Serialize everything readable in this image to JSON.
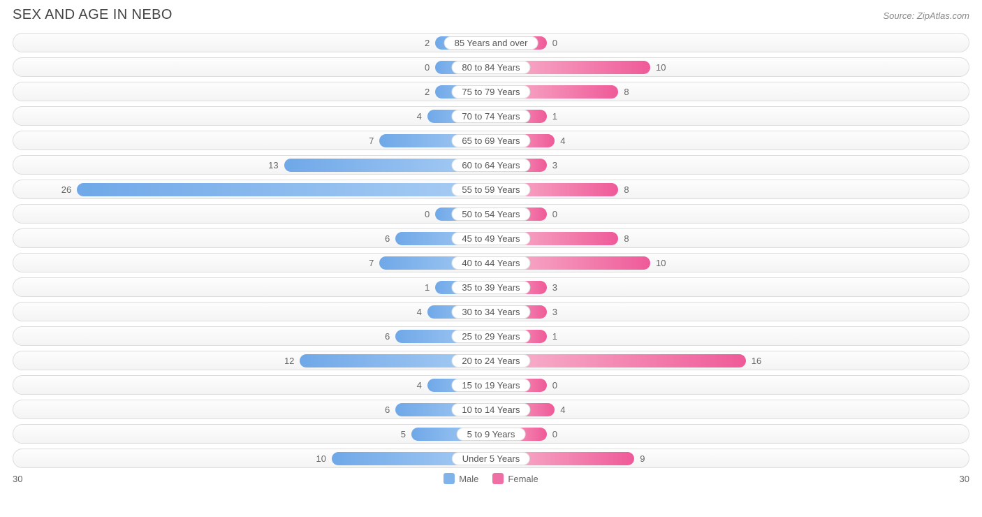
{
  "title": "SEX AND AGE IN NEBO",
  "source": "Source: ZipAtlas.com",
  "chart": {
    "type": "population-pyramid",
    "axis_max": 30,
    "axis_left_label": "30",
    "axis_right_label": "30",
    "min_bar_value_for_width": 3.5,
    "track_border": "#dddddd",
    "track_bg_top": "#fdfdfd",
    "track_bg_bottom": "#f4f4f4",
    "label_bg": "#ffffff",
    "label_border": "#dcdcdc",
    "text_color": "#666666",
    "male_gradient": {
      "left": "#6fa8e8",
      "right": "#a9cdf4"
    },
    "female_gradient": {
      "left": "#f8b8cf",
      "right": "#ef5a98"
    },
    "legend": {
      "male": {
        "label": "Male",
        "color": "#7fb3ea"
      },
      "female": {
        "label": "Female",
        "color": "#ef6fa4"
      }
    },
    "rows": [
      {
        "label": "85 Years and over",
        "male": 2,
        "female": 0
      },
      {
        "label": "80 to 84 Years",
        "male": 0,
        "female": 10
      },
      {
        "label": "75 to 79 Years",
        "male": 2,
        "female": 8
      },
      {
        "label": "70 to 74 Years",
        "male": 4,
        "female": 1
      },
      {
        "label": "65 to 69 Years",
        "male": 7,
        "female": 4
      },
      {
        "label": "60 to 64 Years",
        "male": 13,
        "female": 3
      },
      {
        "label": "55 to 59 Years",
        "male": 26,
        "female": 8
      },
      {
        "label": "50 to 54 Years",
        "male": 0,
        "female": 0
      },
      {
        "label": "45 to 49 Years",
        "male": 6,
        "female": 8
      },
      {
        "label": "40 to 44 Years",
        "male": 7,
        "female": 10
      },
      {
        "label": "35 to 39 Years",
        "male": 1,
        "female": 3
      },
      {
        "label": "30 to 34 Years",
        "male": 4,
        "female": 3
      },
      {
        "label": "25 to 29 Years",
        "male": 6,
        "female": 1
      },
      {
        "label": "20 to 24 Years",
        "male": 12,
        "female": 16
      },
      {
        "label": "15 to 19 Years",
        "male": 4,
        "female": 0
      },
      {
        "label": "10 to 14 Years",
        "male": 6,
        "female": 4
      },
      {
        "label": "5 to 9 Years",
        "male": 5,
        "female": 0
      },
      {
        "label": "Under 5 Years",
        "male": 10,
        "female": 9
      }
    ]
  }
}
